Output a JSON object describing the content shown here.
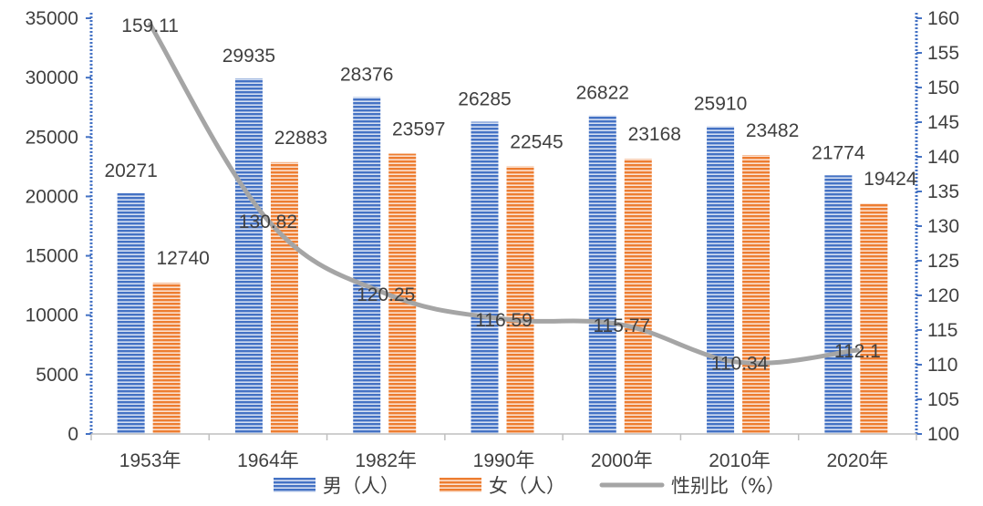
{
  "chart_data": {
    "type": "bar",
    "categories": [
      "1953年",
      "1964年",
      "1982年",
      "1990年",
      "2000年",
      "2010年",
      "2020年"
    ],
    "series": [
      {
        "name": "男（人）",
        "type": "bar",
        "axis": "left",
        "color": "#4472C4",
        "values": [
          20271,
          29935,
          28376,
          26285,
          26822,
          25910,
          21774
        ]
      },
      {
        "name": "女（人）",
        "type": "bar",
        "axis": "left",
        "color": "#ED7D31",
        "values": [
          12740,
          22883,
          23597,
          22545,
          23168,
          23482,
          19424
        ]
      },
      {
        "name": "性别比（%）",
        "type": "line",
        "axis": "right",
        "color": "#A5A5A5",
        "values": [
          159.11,
          130.82,
          120.25,
          116.59,
          115.77,
          110.34,
          112.1
        ]
      }
    ],
    "y_left": {
      "min": 0,
      "max": 35000,
      "step": 5000,
      "ticks": [
        "0",
        "5000",
        "10000",
        "15000",
        "20000",
        "25000",
        "30000",
        "35000"
      ]
    },
    "y_right": {
      "min": 100,
      "max": 160,
      "step": 5,
      "ticks": [
        "100",
        "105",
        "110",
        "115",
        "120",
        "125",
        "130",
        "135",
        "140",
        "145",
        "150",
        "155",
        "160"
      ]
    },
    "legend": {
      "position": "bottom",
      "labels": [
        "男（人）",
        "女（人）",
        "性别比（%）"
      ]
    },
    "title": "",
    "xlabel": "",
    "ylabel": ""
  }
}
